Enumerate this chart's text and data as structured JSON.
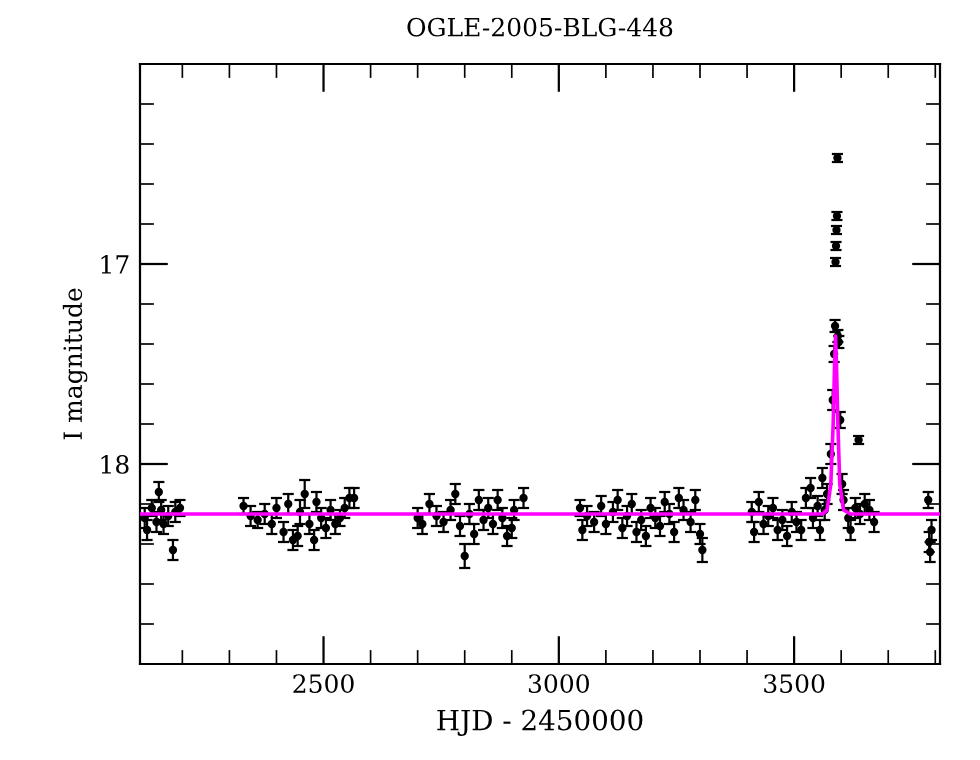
{
  "chart_data": {
    "type": "scatter",
    "title": "OGLE-2005-BLG-448",
    "xlabel": "HJD - 2450000",
    "ylabel": "I magnitude",
    "xlim": [
      2110,
      3810
    ],
    "ylim": [
      19.0,
      16.0
    ],
    "xticks": [
      {
        "value": 2200,
        "label": null
      },
      {
        "value": 2300,
        "label": null
      },
      {
        "value": 2400,
        "label": null
      },
      2500,
      {
        "value": 2600,
        "label": null
      },
      {
        "value": 2700,
        "label": null
      },
      {
        "value": 2800,
        "label": null
      },
      {
        "value": 2900,
        "label": null
      },
      3000,
      {
        "value": 3100,
        "label": null
      },
      {
        "value": 3200,
        "label": null
      },
      {
        "value": 3300,
        "label": null
      },
      {
        "value": 3400,
        "label": null
      },
      3500,
      {
        "value": 3600,
        "label": null
      },
      {
        "value": 3700,
        "label": null
      },
      {
        "value": 3800,
        "label": null
      }
    ],
    "yticks": [
      {
        "value": 16.2,
        "label": null
      },
      {
        "value": 16.4,
        "label": null
      },
      {
        "value": 16.6,
        "label": null
      },
      {
        "value": 16.8,
        "label": null
      },
      17,
      {
        "value": 17.2,
        "label": null
      },
      {
        "value": 17.4,
        "label": null
      },
      {
        "value": 17.6,
        "label": null
      },
      {
        "value": 17.8,
        "label": null
      },
      18,
      {
        "value": 18.2,
        "label": null
      },
      {
        "value": 18.4,
        "label": null
      },
      {
        "value": 18.6,
        "label": null
      },
      {
        "value": 18.8,
        "label": null
      }
    ],
    "grid": false,
    "legend": false,
    "marker": "circle",
    "series": [
      {
        "color": "#000000",
        "x": [
          2120,
          2125,
          2135,
          2145,
          2150,
          2155,
          2160,
          2170,
          2180,
          2185,
          2195,
          2330,
          2345,
          2360,
          2375,
          2390,
          2400,
          2415,
          2425,
          2435,
          2445,
          2450,
          2460,
          2470,
          2480,
          2485,
          2495,
          2505,
          2515,
          2525,
          2535,
          2545,
          2555,
          2565,
          2700,
          2710,
          2725,
          2740,
          2755,
          2770,
          2780,
          2790,
          2800,
          2810,
          2820,
          2830,
          2840,
          2850,
          2860,
          2870,
          2880,
          2890,
          2900,
          2905,
          2925,
          3045,
          3050,
          3060,
          3075,
          3090,
          3100,
          3115,
          3125,
          3135,
          3145,
          3155,
          3165,
          3175,
          3185,
          3195,
          3205,
          3215,
          3225,
          3235,
          3245,
          3255,
          3265,
          3280,
          3290,
          3300,
          3305,
          3410,
          3415,
          3425,
          3435,
          3445,
          3455,
          3465,
          3475,
          3485,
          3495,
          3505,
          3515,
          3525,
          3535,
          3540,
          3550,
          3555,
          3560,
          3565,
          3570,
          3578,
          3582,
          3585,
          3587,
          3588,
          3589,
          3590,
          3591,
          3592,
          3593,
          3595,
          3598,
          3602,
          3605,
          3615,
          3620,
          3630,
          3637,
          3640,
          3650,
          3660,
          3670,
          3785,
          3787,
          3789,
          3792
        ],
        "values": [
          18.27,
          18.33,
          18.22,
          18.29,
          18.14,
          18.23,
          18.3,
          18.26,
          18.43,
          18.24,
          18.22,
          18.21,
          18.26,
          18.28,
          18.25,
          18.3,
          18.22,
          18.34,
          18.2,
          18.38,
          18.36,
          18.24,
          18.15,
          18.3,
          18.38,
          18.19,
          18.27,
          18.32,
          18.23,
          18.3,
          18.27,
          18.22,
          18.17,
          18.17,
          18.27,
          18.3,
          18.2,
          18.26,
          18.29,
          18.23,
          18.15,
          18.31,
          18.46,
          18.25,
          18.35,
          18.18,
          18.28,
          18.22,
          18.3,
          18.18,
          18.27,
          18.36,
          18.32,
          18.23,
          18.17,
          18.22,
          18.33,
          18.26,
          18.29,
          18.21,
          18.3,
          18.24,
          18.18,
          18.32,
          18.26,
          18.2,
          18.34,
          18.28,
          18.36,
          18.22,
          18.27,
          18.31,
          18.19,
          18.25,
          18.34,
          18.17,
          18.23,
          18.29,
          18.18,
          18.35,
          18.43,
          18.24,
          18.34,
          18.19,
          18.3,
          18.26,
          18.22,
          18.33,
          18.28,
          18.36,
          18.24,
          18.29,
          18.33,
          18.17,
          18.12,
          18.27,
          18.21,
          18.33,
          18.07,
          18.23,
          18.15,
          17.95,
          17.68,
          17.45,
          17.31,
          16.99,
          16.91,
          16.83,
          16.76,
          16.47,
          17.36,
          17.39,
          17.78,
          18.1,
          18.18,
          18.27,
          18.33,
          18.22,
          17.88,
          18.25,
          18.2,
          18.23,
          18.29,
          18.18,
          18.39,
          18.44,
          18.33
        ],
        "errors": [
          0.05,
          0.05,
          0.04,
          0.05,
          0.05,
          0.05,
          0.05,
          0.05,
          0.05,
          0.05,
          0.04,
          0.04,
          0.05,
          0.04,
          0.05,
          0.05,
          0.05,
          0.05,
          0.05,
          0.05,
          0.05,
          0.06,
          0.07,
          0.05,
          0.05,
          0.05,
          0.05,
          0.05,
          0.05,
          0.05,
          0.04,
          0.05,
          0.05,
          0.05,
          0.05,
          0.05,
          0.05,
          0.05,
          0.05,
          0.05,
          0.05,
          0.05,
          0.06,
          0.05,
          0.05,
          0.05,
          0.05,
          0.05,
          0.05,
          0.05,
          0.05,
          0.05,
          0.05,
          0.05,
          0.05,
          0.04,
          0.05,
          0.05,
          0.05,
          0.05,
          0.05,
          0.05,
          0.05,
          0.05,
          0.05,
          0.05,
          0.05,
          0.05,
          0.05,
          0.05,
          0.05,
          0.05,
          0.05,
          0.05,
          0.05,
          0.05,
          0.05,
          0.05,
          0.05,
          0.05,
          0.06,
          0.05,
          0.05,
          0.05,
          0.05,
          0.05,
          0.05,
          0.05,
          0.05,
          0.05,
          0.05,
          0.05,
          0.05,
          0.05,
          0.05,
          0.05,
          0.05,
          0.05,
          0.05,
          0.05,
          0.05,
          0.05,
          0.05,
          0.04,
          0.03,
          0.02,
          0.02,
          0.02,
          0.02,
          0.02,
          0.03,
          0.03,
          0.04,
          0.05,
          0.05,
          0.05,
          0.05,
          0.05,
          0.02,
          0.05,
          0.05,
          0.05,
          0.05,
          0.04,
          0.05,
          0.05,
          0.05
        ]
      },
      {
        "type": "line",
        "color": "#ff00ff",
        "marker": "none",
        "x": [
          2110,
          3560,
          3570,
          3578,
          3583,
          3586,
          3588,
          3590,
          3593,
          3597,
          3605,
          3620,
          3810
        ],
        "values": [
          18.25,
          18.25,
          18.23,
          18.1,
          17.8,
          17.5,
          17.36,
          17.5,
          17.8,
          18.1,
          18.23,
          18.25,
          18.25
        ]
      }
    ]
  }
}
